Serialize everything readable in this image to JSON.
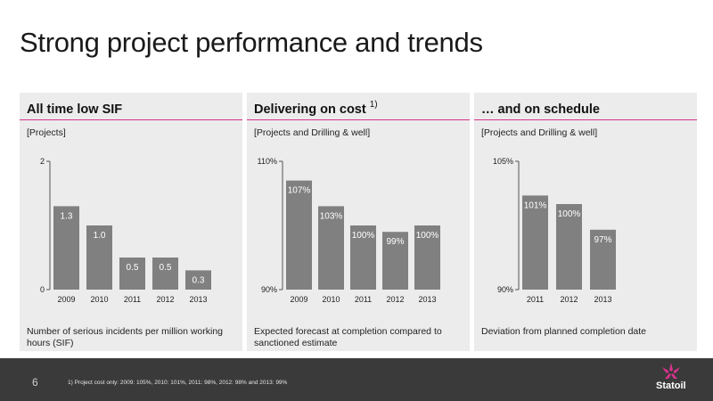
{
  "title": "Strong project performance and trends",
  "panels": [
    {
      "title": "All time low SIF",
      "sup": "",
      "unit": "[Projects]",
      "note": "Number of serious incidents per million working hours (SIF)"
    },
    {
      "title": "Delivering on cost",
      "sup": "1)",
      "unit": "[Projects and Drilling & well]",
      "note": "Expected forecast at completion compared to sanctioned estimate"
    },
    {
      "title": "… and on schedule",
      "sup": "",
      "unit": "[Projects and Drilling & well]",
      "note": "Deviation from planned completion date"
    }
  ],
  "chart_data": [
    {
      "type": "bar",
      "categories": [
        "2009",
        "2010",
        "2011",
        "2012",
        "2013"
      ],
      "values": [
        1.3,
        1.0,
        0.5,
        0.5,
        0.3
      ],
      "labels": [
        "1.3",
        "1.0",
        "0.5",
        "0.5",
        "0.3"
      ],
      "ylim": [
        0,
        2
      ],
      "yticks": [
        "0",
        "2"
      ],
      "color": "#808080"
    },
    {
      "type": "bar",
      "categories": [
        "2009",
        "2010",
        "2011",
        "2012",
        "2013"
      ],
      "values": [
        107,
        103,
        100,
        99,
        100
      ],
      "labels": [
        "107%",
        "103%",
        "100%",
        "99%",
        "100%"
      ],
      "ylim": [
        90,
        110
      ],
      "yticks": [
        "90%",
        "110%"
      ],
      "color": "#808080"
    },
    {
      "type": "bar",
      "categories": [
        "2011",
        "2012",
        "2013"
      ],
      "values": [
        101,
        100,
        97
      ],
      "labels": [
        "101%",
        "100%",
        "97%"
      ],
      "ylim": [
        90,
        105
      ],
      "yticks": [
        "90%",
        "105%"
      ],
      "color": "#808080"
    }
  ],
  "footer": {
    "page": "6",
    "footnote": "1)     Project cost only: 2009: 105%, 2010: 101%, 2011: 98%, 2012: 98% and 2013: 99%",
    "logo_text": "Statoil"
  }
}
